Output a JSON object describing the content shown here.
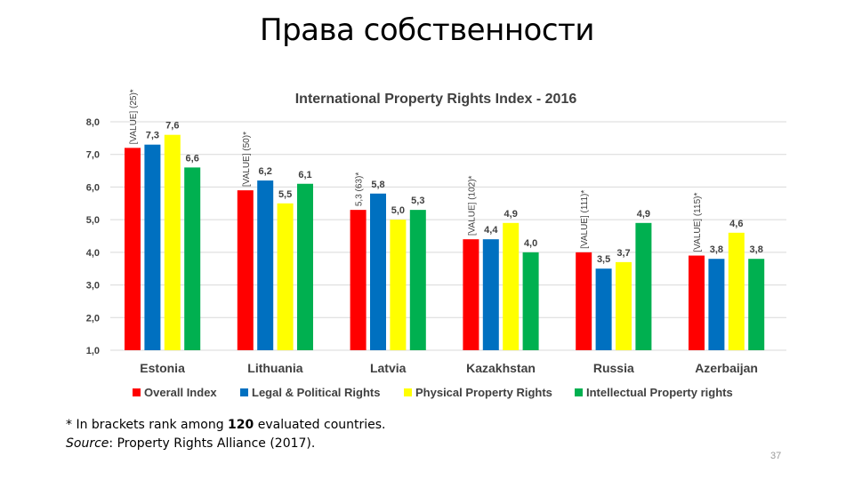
{
  "slide": {
    "title": "Права собственности",
    "page_number": "37"
  },
  "footnote": {
    "line1_prefix": "* In brackets rank among ",
    "line1_number": "120",
    "line1_suffix": " evaluated countries.",
    "source_label": "Source",
    "source_text": ": Property Rights Alliance (2017)."
  },
  "chart_data": {
    "type": "bar",
    "title": "International Property Rights Index - 2016",
    "categories": [
      "Estonia",
      "Lithuania",
      "Latvia",
      "Kazakhstan",
      "Russia",
      "Azerbaijan"
    ],
    "ylim": [
      1.0,
      8.0
    ],
    "yticks": [
      "1,0",
      "2,0",
      "3,0",
      "4,0",
      "5,0",
      "6,0",
      "7,0",
      "8,0"
    ],
    "grid": true,
    "legend_position": "bottom",
    "series": [
      {
        "name": "Overall Index",
        "color": "#ff0000",
        "values": [
          7.2,
          5.9,
          5.3,
          4.4,
          4.0,
          3.9
        ],
        "labels": [
          "[VALUE] (25)*",
          "[VALUE] (50)*",
          "5,3 (63)*",
          "[VALUE] (102)*",
          "[VALUE] (111)*",
          "[VALUE] (115)*"
        ]
      },
      {
        "name": "Legal & Political Rights",
        "color": "#0070c0",
        "values": [
          7.3,
          6.2,
          5.8,
          4.4,
          3.5,
          3.8
        ],
        "labels": [
          "7,3",
          "6,2",
          "5,8",
          "4,4",
          "3,5",
          "3,8"
        ]
      },
      {
        "name": "Physical Property Rights",
        "color": "#ffff00",
        "values": [
          7.6,
          5.5,
          5.0,
          4.9,
          3.7,
          4.6
        ],
        "labels": [
          "7,6",
          "5,5",
          "5,0",
          "4,9",
          "3,7",
          "4,6"
        ]
      },
      {
        "name": "Intellectual Property rights",
        "color": "#00b050",
        "values": [
          6.6,
          6.1,
          5.3,
          4.0,
          4.9,
          3.8
        ],
        "labels": [
          "6,6",
          "6,1",
          "5,3",
          "4,0",
          "4,9",
          "3,8"
        ]
      }
    ]
  }
}
